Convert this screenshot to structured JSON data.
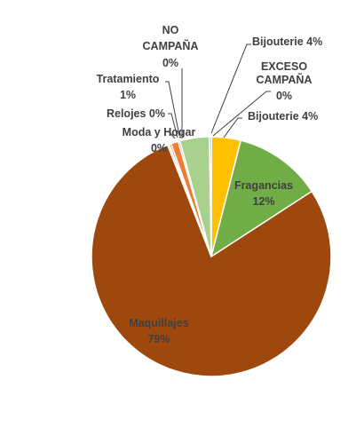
{
  "chart_data": {
    "type": "pie",
    "title": "",
    "slices": [
      {
        "name": "Bijouterie",
        "value": 4,
        "value_label": "4%",
        "color": "#FFC000"
      },
      {
        "name": "Fragancias",
        "value": 12,
        "value_label": "12%",
        "color": "#70AD47"
      },
      {
        "name": "Maquillajes",
        "value": 79,
        "value_label": "79%",
        "color": "#9E480E"
      },
      {
        "name": "Moda y Hogar",
        "value": 0,
        "value_label": "0%",
        "color": "#F4B183"
      },
      {
        "name": "Relojes",
        "value": 0,
        "value_label": "0%",
        "color": "#C55A11"
      },
      {
        "name": "Tratamiento",
        "value": 1,
        "value_label": "1%",
        "color": "#ED7D31"
      },
      {
        "name": "NO CAMPAÑA",
        "value": 0,
        "value_label": "0%",
        "color": "#A5A5A5"
      },
      {
        "name": "Bijouterie",
        "value": 4,
        "value_label": "4%",
        "color": "#A9D18E"
      },
      {
        "name": "EXCESO CAMPAÑA",
        "value": 0,
        "value_label": "0%",
        "color": "#5B9BD5"
      }
    ],
    "legend": "none",
    "data_labels": "outside-with-leader-lines"
  },
  "labels": {
    "bijouterie_a": "Bijouterie 4%",
    "fragancias_name": "Fragancias",
    "fragancias_pct": "12%",
    "maquillajes_name": "Maquillajes",
    "maquillajes_pct": "79%",
    "moda_name": "Moda y Hogar",
    "moda_pct": "0%",
    "relojes": "Relojes 0%",
    "tratamiento_name": "Tratamiento",
    "tratamiento_pct": "1%",
    "no_campana_l1": "NO",
    "no_campana_l2": "CAMPAÑA",
    "no_campana_pct": "0%",
    "bijouterie_b": "Bijouterie 4%",
    "exceso_l1": "EXCESO",
    "exceso_l2": "CAMPAÑA",
    "exceso_pct": "0%"
  }
}
